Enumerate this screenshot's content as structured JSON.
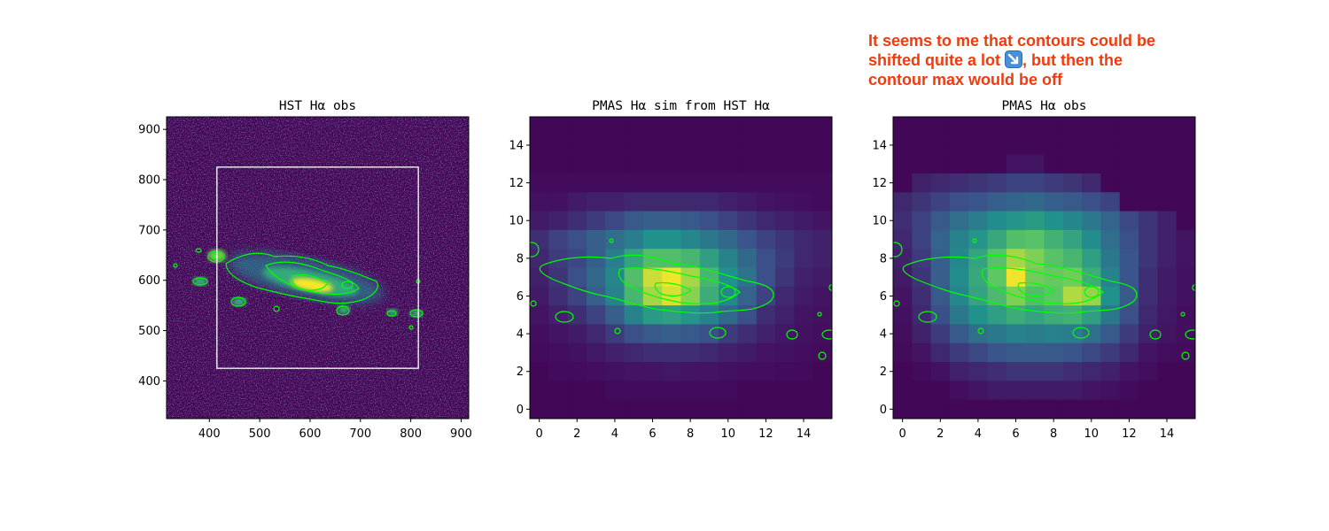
{
  "annotation": {
    "line1": "It seems to me that contours could be",
    "line2a": "shifted quite a lot",
    "icon": "arrow-down-right-icon",
    "line2b": ", but then the",
    "line3": "contour max would be off",
    "color": "#f23a0c"
  },
  "chart_data": [
    {
      "type": "heatmap",
      "title": "HST Hα obs",
      "xlim": [
        315,
        915
      ],
      "ylim": [
        325,
        925
      ],
      "x_ticks": [
        400,
        500,
        600,
        700,
        800,
        900
      ],
      "y_ticks": [
        400,
        500,
        600,
        700,
        800,
        900
      ],
      "colormap": "viridis",
      "contour_color": "#00ff00",
      "box": {
        "x": [
          415,
          815
        ],
        "y": [
          425,
          825
        ],
        "color": "#ffffff"
      }
    },
    {
      "type": "heatmap",
      "title": "PMAS Hα sim from HST Hα",
      "xlim": [
        -0.5,
        15.5
      ],
      "ylim": [
        -0.5,
        15.5
      ],
      "x_ticks": [
        0,
        2,
        4,
        6,
        8,
        10,
        12,
        14
      ],
      "y_ticks": [
        0,
        2,
        4,
        6,
        8,
        10,
        12,
        14
      ],
      "colormap": "viridis",
      "contour_color": "#00ff00",
      "grid": [
        [
          0.02,
          0.02,
          0.02,
          0.02,
          0.02,
          0.02,
          0.02,
          0.02,
          0.02,
          0.02,
          0.02,
          0.02,
          0.02,
          0.02,
          0.02,
          0.02
        ],
        [
          0.02,
          0.02,
          0.02,
          0.02,
          0.02,
          0.02,
          0.02,
          0.02,
          0.02,
          0.02,
          0.02,
          0.02,
          0.02,
          0.02,
          0.02,
          0.02
        ],
        [
          0.02,
          0.02,
          0.02,
          0.02,
          0.02,
          0.02,
          0.02,
          0.02,
          0.02,
          0.02,
          0.02,
          0.02,
          0.02,
          0.02,
          0.02,
          0.02
        ],
        [
          0.02,
          0.02,
          0.02,
          0.02,
          0.02,
          0.02,
          0.02,
          0.02,
          0.02,
          0.02,
          0.02,
          0.02,
          0.02,
          0.02,
          0.02,
          0.02
        ],
        [
          0.03,
          0.03,
          0.03,
          0.03,
          0.03,
          0.03,
          0.03,
          0.03,
          0.03,
          0.03,
          0.03,
          0.03,
          0.03,
          0.03,
          0.03,
          0.03
        ],
        [
          0.05,
          0.05,
          0.08,
          0.1,
          0.1,
          0.12,
          0.12,
          0.12,
          0.12,
          0.12,
          0.1,
          0.08,
          0.06,
          0.05,
          0.04,
          0.03
        ],
        [
          0.08,
          0.1,
          0.14,
          0.18,
          0.22,
          0.28,
          0.3,
          0.3,
          0.28,
          0.24,
          0.2,
          0.16,
          0.12,
          0.1,
          0.08,
          0.06
        ],
        [
          0.14,
          0.2,
          0.24,
          0.3,
          0.36,
          0.42,
          0.5,
          0.5,
          0.46,
          0.4,
          0.34,
          0.26,
          0.2,
          0.16,
          0.12,
          0.1
        ],
        [
          0.12,
          0.18,
          0.22,
          0.3,
          0.42,
          0.58,
          0.7,
          0.7,
          0.66,
          0.56,
          0.44,
          0.34,
          0.24,
          0.18,
          0.12,
          0.1
        ],
        [
          0.1,
          0.16,
          0.24,
          0.34,
          0.46,
          0.7,
          0.92,
          0.98,
          0.86,
          0.66,
          0.5,
          0.38,
          0.24,
          0.16,
          0.1,
          0.08
        ],
        [
          0.08,
          0.14,
          0.2,
          0.3,
          0.44,
          0.66,
          0.86,
          0.94,
          0.82,
          0.62,
          0.46,
          0.32,
          0.2,
          0.12,
          0.08,
          0.06
        ],
        [
          0.06,
          0.1,
          0.14,
          0.2,
          0.3,
          0.44,
          0.54,
          0.56,
          0.52,
          0.44,
          0.34,
          0.24,
          0.14,
          0.1,
          0.06,
          0.05
        ],
        [
          0.04,
          0.06,
          0.08,
          0.12,
          0.18,
          0.24,
          0.28,
          0.3,
          0.28,
          0.24,
          0.18,
          0.14,
          0.1,
          0.07,
          0.05,
          0.04
        ],
        [
          0.03,
          0.04,
          0.05,
          0.07,
          0.1,
          0.12,
          0.14,
          0.14,
          0.14,
          0.12,
          0.1,
          0.08,
          0.06,
          0.05,
          0.04,
          0.03
        ],
        [
          0.02,
          0.03,
          0.03,
          0.04,
          0.05,
          0.06,
          0.06,
          0.07,
          0.06,
          0.06,
          0.05,
          0.04,
          0.04,
          0.03,
          0.03,
          0.02
        ],
        [
          0.02,
          0.02,
          0.02,
          0.02,
          0.03,
          0.03,
          0.03,
          0.03,
          0.03,
          0.03,
          0.03,
          0.02,
          0.02,
          0.02,
          0.02,
          0.02
        ],
        [
          0.02,
          0.02,
          0.02,
          0.02,
          0.02,
          0.02,
          0.02,
          0.02,
          0.02,
          0.02,
          0.02,
          0.02,
          0.02,
          0.02,
          0.02,
          0.02
        ]
      ]
    },
    {
      "type": "heatmap",
      "title": "PMAS Hα obs",
      "xlim": [
        -0.5,
        15.5
      ],
      "ylim": [
        -0.5,
        15.5
      ],
      "x_ticks": [
        0,
        2,
        4,
        6,
        8,
        10,
        12,
        14
      ],
      "y_ticks": [
        0,
        2,
        4,
        6,
        8,
        10,
        12,
        14
      ],
      "colormap": "viridis",
      "contour_color": "#00ff00",
      "grid": [
        [
          0.02,
          0.02,
          0.02,
          0.02,
          0.02,
          0.02,
          0.02,
          0.02,
          0.02,
          0.02,
          0.02,
          0.02,
          0.02,
          0.02,
          0.02,
          0.02
        ],
        [
          0.02,
          0.02,
          0.02,
          0.02,
          0.02,
          0.02,
          0.02,
          0.02,
          0.02,
          0.02,
          0.02,
          0.02,
          0.02,
          0.02,
          0.02,
          0.02
        ],
        [
          0.02,
          0.02,
          0.02,
          0.02,
          0.02,
          0.02,
          0.02,
          0.02,
          0.02,
          0.02,
          0.02,
          0.02,
          0.02,
          0.02,
          0.02,
          0.02
        ],
        [
          0.02,
          0.02,
          0.02,
          0.02,
          0.02,
          0.02,
          0.06,
          0.06,
          0.02,
          0.02,
          0.02,
          0.02,
          0.02,
          0.02,
          0.02,
          0.02
        ],
        [
          0.02,
          0.1,
          0.12,
          0.14,
          0.16,
          0.18,
          0.2,
          0.2,
          0.18,
          0.16,
          0.12,
          0.02,
          0.02,
          0.02,
          0.02,
          0.02
        ],
        [
          0.12,
          0.16,
          0.2,
          0.24,
          0.26,
          0.3,
          0.32,
          0.34,
          0.3,
          0.28,
          0.24,
          0.2,
          0.02,
          0.02,
          0.02,
          0.02
        ],
        [
          0.14,
          0.2,
          0.28,
          0.36,
          0.42,
          0.48,
          0.52,
          0.54,
          0.5,
          0.46,
          0.4,
          0.32,
          0.22,
          0.16,
          0.1,
          0.02
        ],
        [
          0.12,
          0.2,
          0.32,
          0.44,
          0.52,
          0.6,
          0.7,
          0.72,
          0.64,
          0.58,
          0.48,
          0.36,
          0.24,
          0.16,
          0.1,
          0.06
        ],
        [
          0.1,
          0.18,
          0.3,
          0.46,
          0.58,
          0.72,
          0.86,
          0.8,
          0.72,
          0.66,
          0.56,
          0.4,
          0.26,
          0.16,
          0.1,
          0.06
        ],
        [
          0.08,
          0.16,
          0.3,
          0.48,
          0.6,
          0.74,
          0.98,
          0.78,
          0.76,
          0.78,
          0.62,
          0.44,
          0.26,
          0.14,
          0.08,
          0.05
        ],
        [
          0.06,
          0.14,
          0.28,
          0.46,
          0.58,
          0.68,
          0.8,
          0.7,
          0.74,
          0.88,
          0.84,
          0.5,
          0.28,
          0.14,
          0.08,
          0.05
        ],
        [
          0.05,
          0.12,
          0.24,
          0.4,
          0.5,
          0.56,
          0.62,
          0.58,
          0.62,
          0.64,
          0.56,
          0.4,
          0.24,
          0.12,
          0.07,
          0.04
        ],
        [
          0.04,
          0.1,
          0.18,
          0.28,
          0.36,
          0.4,
          0.44,
          0.42,
          0.44,
          0.42,
          0.36,
          0.28,
          0.18,
          0.1,
          0.06,
          0.04
        ],
        [
          0.03,
          0.06,
          0.12,
          0.18,
          0.22,
          0.26,
          0.28,
          0.28,
          0.28,
          0.26,
          0.22,
          0.18,
          0.12,
          0.06,
          0.04,
          0.03
        ],
        [
          0.02,
          0.03,
          0.05,
          0.1,
          0.12,
          0.14,
          0.16,
          0.16,
          0.16,
          0.14,
          0.12,
          0.1,
          0.06,
          0.04,
          0.02,
          0.02
        ],
        [
          0.02,
          0.02,
          0.02,
          0.04,
          0.06,
          0.08,
          0.08,
          0.08,
          0.08,
          0.08,
          0.06,
          0.05,
          0.03,
          0.02,
          0.02,
          0.02
        ],
        [
          0.02,
          0.02,
          0.02,
          0.02,
          0.02,
          0.02,
          0.02,
          0.02,
          0.02,
          0.02,
          0.02,
          0.02,
          0.02,
          0.02,
          0.02,
          0.02
        ]
      ]
    }
  ]
}
